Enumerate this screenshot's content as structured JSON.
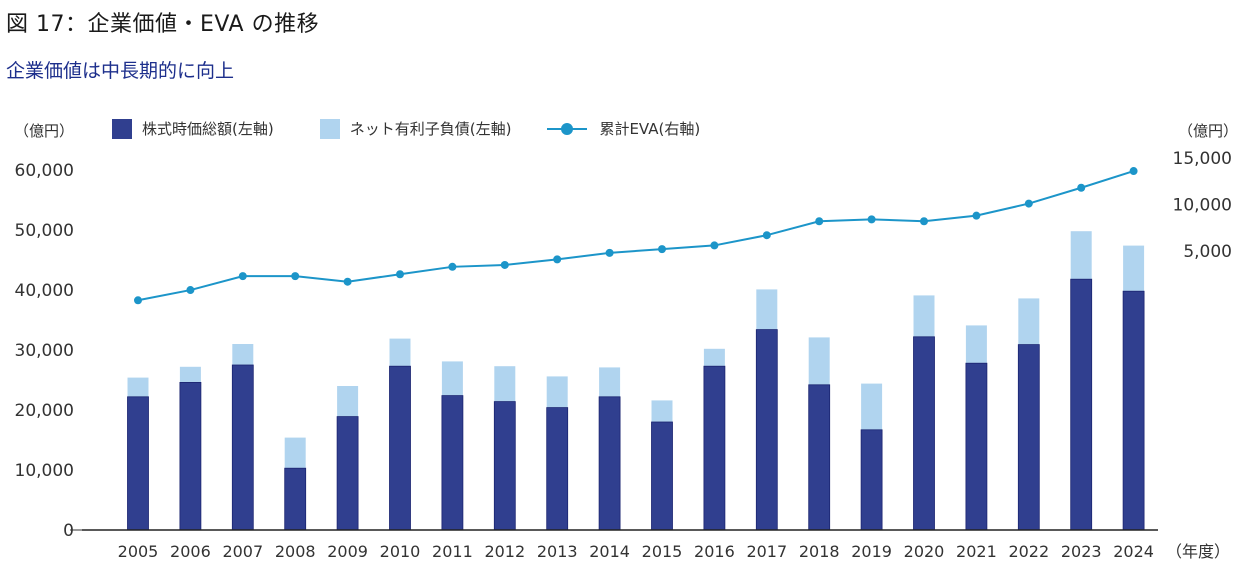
{
  "title": "図 17：企業価値・EVA の推移",
  "subtitle": "企業価値は中長期的に向上",
  "colors": {
    "market_cap": "#303f8f",
    "net_debt": "#b0d4ef",
    "eva": "#1c95c9",
    "subtitle": "#1d2f8c"
  },
  "chart_data": {
    "type": "bar",
    "stacked": true,
    "title": "図 17：企業価値・EVA の推移",
    "subtitle": "企業価値は中長期的に向上",
    "xlabel": "（年度）",
    "ylabel": "（億円）",
    "y2label": "（億円）",
    "ylim": [
      0,
      60000
    ],
    "y2lim": [
      -300,
      15000
    ],
    "yticks": [
      "0",
      "10,000",
      "20,000",
      "30,000",
      "40,000",
      "50,000",
      "60,000"
    ],
    "y2ticks": [
      "5,000",
      "10,000",
      "15,000"
    ],
    "grid": false,
    "legend_position": "top",
    "categories": [
      "2005",
      "2006",
      "2007",
      "2008",
      "2009",
      "2010",
      "2011",
      "2012",
      "2013",
      "2014",
      "2015",
      "2016",
      "2017",
      "2018",
      "2019",
      "2020",
      "2021",
      "2022",
      "2023",
      "2024"
    ],
    "series": [
      {
        "name": "株式時価総額(左軸)",
        "type": "bar",
        "axis": "left",
        "values": [
          22200,
          24600,
          27500,
          10300,
          18900,
          27300,
          22400,
          21400,
          20400,
          22200,
          18000,
          27300,
          33400,
          24200,
          16700,
          32200,
          27800,
          30900,
          41800,
          39800
        ]
      },
      {
        "name": "ネット有利子負債(左軸)",
        "type": "bar",
        "axis": "left",
        "values": [
          3200,
          2600,
          3500,
          5100,
          5100,
          4600,
          5700,
          5900,
          5200,
          4900,
          3600,
          2900,
          6700,
          7900,
          7700,
          6900,
          6300,
          7700,
          8000,
          7600
        ]
      },
      {
        "name": "累計EVA(右軸)",
        "type": "line",
        "axis": "right",
        "values": [
          -300,
          800,
          2300,
          2300,
          1700,
          2500,
          3300,
          3500,
          4100,
          4800,
          5200,
          5600,
          6700,
          8200,
          8400,
          8200,
          8800,
          10100,
          11800,
          13600
        ]
      }
    ]
  },
  "axis_unit_left": "（億円）",
  "axis_unit_right": "（億円）",
  "x_unit": "（年度）"
}
